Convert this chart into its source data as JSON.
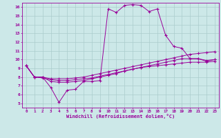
{
  "title": "",
  "xlabel": "Windchill (Refroidissement éolien,°C)",
  "bg_color": "#cce8e8",
  "line_color": "#990099",
  "grid_color": "#aacccc",
  "xlim": [
    -0.5,
    23.5
  ],
  "ylim": [
    4.5,
    16.5
  ],
  "x_ticks": [
    0,
    1,
    2,
    3,
    4,
    5,
    6,
    7,
    8,
    9,
    10,
    11,
    12,
    13,
    14,
    15,
    16,
    17,
    18,
    19,
    20,
    21,
    22,
    23
  ],
  "y_ticks": [
    5,
    6,
    7,
    8,
    9,
    10,
    11,
    12,
    13,
    14,
    15,
    16
  ],
  "series": {
    "line1_x": [
      0,
      1,
      2,
      3,
      4,
      5,
      6,
      7,
      8,
      9,
      10,
      11,
      12,
      13,
      14,
      15,
      16,
      17,
      18,
      19,
      20,
      21,
      22,
      23
    ],
    "line1_y": [
      9.3,
      8.0,
      8.0,
      6.8,
      5.1,
      6.5,
      6.6,
      7.5,
      7.5,
      7.6,
      15.8,
      15.4,
      16.2,
      16.3,
      16.2,
      15.5,
      15.8,
      12.8,
      11.5,
      11.3,
      10.1,
      10.1,
      9.8,
      10.0
    ],
    "line2_x": [
      0,
      1,
      2,
      3,
      4,
      5,
      6,
      7,
      8,
      9,
      10,
      11,
      12,
      13,
      14,
      15,
      16,
      17,
      18,
      19,
      20,
      21,
      22,
      23
    ],
    "line2_y": [
      9.3,
      8.0,
      8.0,
      7.8,
      7.8,
      7.8,
      7.9,
      8.0,
      8.2,
      8.4,
      8.6,
      8.8,
      9.0,
      9.2,
      9.4,
      9.6,
      9.8,
      10.0,
      10.2,
      10.4,
      10.6,
      10.7,
      10.8,
      10.9
    ],
    "line3_x": [
      0,
      1,
      2,
      3,
      4,
      5,
      6,
      7,
      8,
      9,
      10,
      11,
      12,
      13,
      14,
      15,
      16,
      17,
      18,
      19,
      20,
      21,
      22,
      23
    ],
    "line3_y": [
      9.3,
      8.0,
      8.0,
      7.5,
      7.4,
      7.4,
      7.5,
      7.6,
      7.8,
      8.0,
      8.2,
      8.4,
      8.7,
      8.9,
      9.1,
      9.3,
      9.5,
      9.7,
      9.9,
      10.1,
      10.1,
      10.1,
      9.9,
      10.0
    ],
    "line4_x": [
      0,
      1,
      2,
      3,
      4,
      5,
      6,
      7,
      8,
      9,
      10,
      11,
      12,
      13,
      14,
      15,
      16,
      17,
      18,
      19,
      20,
      21,
      22,
      23
    ],
    "line4_y": [
      9.3,
      8.0,
      7.9,
      7.7,
      7.6,
      7.6,
      7.7,
      7.8,
      7.9,
      8.1,
      8.3,
      8.5,
      8.7,
      8.9,
      9.1,
      9.2,
      9.3,
      9.4,
      9.5,
      9.6,
      9.7,
      9.7,
      9.7,
      9.8
    ]
  }
}
